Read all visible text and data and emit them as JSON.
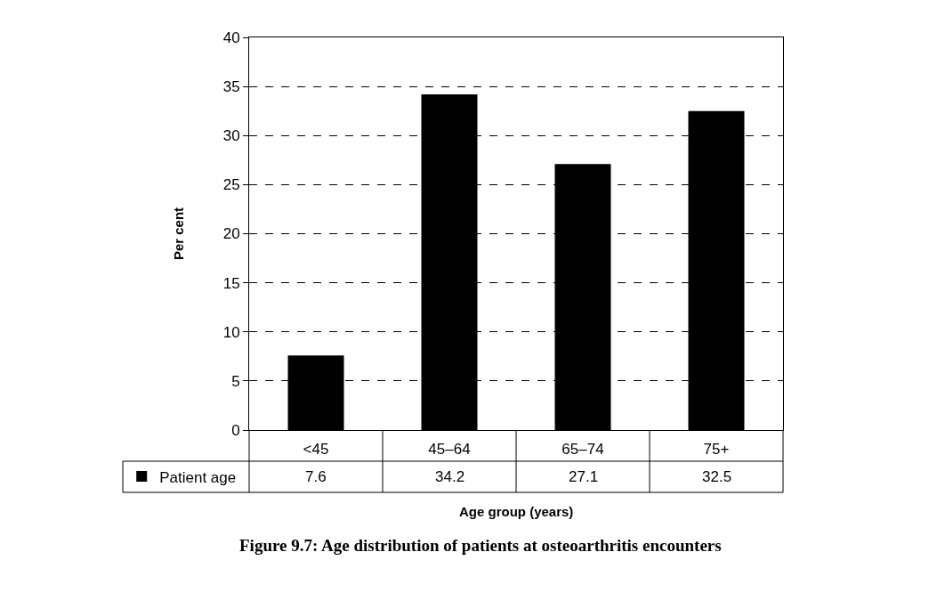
{
  "chart_data": {
    "type": "bar",
    "title": "Figure 9.7: Age distribution of patients at osteoarthritis encounters",
    "xlabel": "Age group (years)",
    "ylabel": "Per cent",
    "categories": [
      "<45",
      "45–64",
      "65–74",
      "75+"
    ],
    "series": [
      {
        "name": "Patient age",
        "color": "#000000",
        "values": [
          7.6,
          34.2,
          27.1,
          32.5
        ]
      }
    ],
    "ylim": [
      0,
      40
    ],
    "yticks": [
      0,
      5,
      10,
      15,
      20,
      25,
      30,
      35,
      40
    ],
    "grid": "y",
    "data_labels": true,
    "legend": "bottom left"
  }
}
